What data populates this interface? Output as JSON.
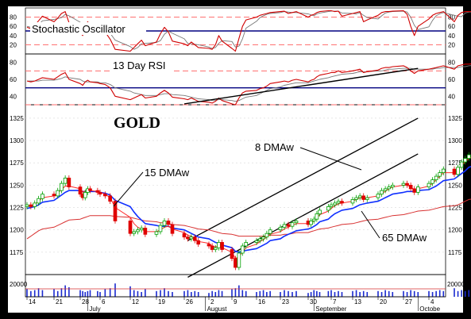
{
  "chart_data": {
    "type": "candlestick",
    "title": "GOLD",
    "panels": {
      "stochastic": {
        "label": "Stochastic Oscillator",
        "yticks": [
          20,
          40,
          60,
          80
        ],
        "ylim": [
          0,
          100
        ],
        "reference_lines": {
          "dashed": [
            20,
            80
          ],
          "solid": [
            50
          ]
        }
      },
      "rsi": {
        "label": "13 Day RSI",
        "yticks": [
          40,
          60,
          80
        ],
        "ylim": [
          30,
          90
        ],
        "reference_lines": {
          "dashed": [
            30,
            70
          ],
          "solid": [
            50
          ]
        }
      },
      "price": {
        "yticks": [
          1175,
          1200,
          1225,
          1250,
          1275,
          1300,
          1325
        ],
        "ylim": [
          1150,
          1340
        ],
        "annotations": [
          "8 DMAw",
          "15 DMAw",
          "65 DMAw"
        ]
      },
      "volume": {
        "ytick": "20000"
      }
    },
    "x_axis": {
      "tick_labels": [
        "14",
        "21",
        "28",
        "6",
        "12",
        "19",
        "26",
        "2",
        "9",
        "16",
        "23",
        "30",
        "7",
        "13",
        "20",
        "27",
        "4"
      ],
      "tick_dates": [
        "2010-06-14",
        "2010-06-21",
        "2010-06-28",
        "2010-07-06",
        "2010-07-12",
        "2010-07-19",
        "2010-07-26",
        "2010-08-02",
        "2010-08-09",
        "2010-08-16",
        "2010-08-23",
        "2010-08-30",
        "2010-09-07",
        "2010-09-13",
        "2010-09-20",
        "2010-09-27",
        "2010-10-04"
      ],
      "months": [
        "July",
        "August",
        "September",
        "Octobe"
      ]
    },
    "close": [
      1228,
      1226,
      1230,
      1235,
      1240,
      1238,
      1244,
      1252,
      1258,
      1248,
      1240,
      1236,
      1242,
      1246,
      1244,
      1242,
      1240,
      1238,
      1232,
      1210,
      1196,
      1198,
      1200,
      1202,
      1195,
      1198,
      1205,
      1210,
      1206,
      1196,
      1192,
      1190,
      1192,
      1188,
      1184,
      1182,
      1178,
      1180,
      1186,
      1178,
      1168,
      1158,
      1174,
      1182,
      1186,
      1188,
      1190,
      1192,
      1196,
      1200,
      1203,
      1206,
      1204,
      1208,
      1210,
      1206,
      1210,
      1212,
      1218,
      1222,
      1226,
      1228,
      1230,
      1232,
      1230,
      1234,
      1236,
      1238,
      1234,
      1236,
      1240,
      1244,
      1246,
      1248,
      1250,
      1252,
      1250,
      1246,
      1242,
      1248,
      1252,
      1256,
      1260,
      1264,
      1268,
      1262,
      1270,
      1276,
      1280,
      1284,
      1290,
      1296,
      1300,
      1302,
      1296,
      1304,
      1310,
      1316,
      1320
    ],
    "dmaw_8": [
      1226,
      1227,
      1229,
      1232,
      1236,
      1238,
      1241,
      1245,
      1249,
      1249,
      1246,
      1243,
      1243,
      1244,
      1244,
      1243,
      1242,
      1240,
      1236,
      1225,
      1214,
      1207,
      1203,
      1201,
      1198,
      1198,
      1200,
      1203,
      1204,
      1201,
      1197,
      1194,
      1193,
      1190,
      1187,
      1185,
      1182,
      1181,
      1182,
      1180,
      1175,
      1168,
      1170,
      1175,
      1180,
      1184,
      1187,
      1189,
      1192,
      1195,
      1198,
      1201,
      1203,
      1205,
      1207,
      1207,
      1208,
      1210,
      1213,
      1217,
      1221,
      1224,
      1227,
      1229,
      1230,
      1232,
      1234,
      1236,
      1235,
      1236,
      1238,
      1241,
      1243,
      1246,
      1248,
      1250,
      1250,
      1248,
      1245,
      1246,
      1249,
      1252,
      1256,
      1260,
      1264,
      1264,
      1267,
      1272,
      1276,
      1280,
      1285,
      1290,
      1295,
      1298,
      1297,
      1300,
      1305,
      1310,
      1315
    ],
    "dmaw_15": [
      1224,
      1225,
      1226,
      1228,
      1231,
      1233,
      1236,
      1239,
      1242,
      1244,
      1244,
      1243,
      1243,
      1243,
      1243,
      1243,
      1242,
      1241,
      1239,
      1233,
      1226,
      1220,
      1215,
      1211,
      1207,
      1205,
      1204,
      1204,
      1204,
      1202,
      1200,
      1198,
      1196,
      1194,
      1192,
      1190,
      1188,
      1186,
      1185,
      1183,
      1180,
      1176,
      1175,
      1176,
      1177,
      1179,
      1181,
      1183,
      1185,
      1188,
      1190,
      1193,
      1195,
      1197,
      1199,
      1201,
      1202,
      1204,
      1206,
      1209,
      1212,
      1215,
      1218,
      1220,
      1222,
      1224,
      1226,
      1228,
      1229,
      1230,
      1232,
      1234,
      1236,
      1238,
      1240,
      1242,
      1243,
      1243,
      1243,
      1244,
      1245,
      1247,
      1249,
      1252,
      1255,
      1257,
      1260,
      1263,
      1266,
      1270,
      1274,
      1278,
      1282,
      1286,
      1288,
      1290,
      1293,
      1297,
      1301
    ],
    "dmaw_65": [
      1190,
      1193,
      1196,
      1199,
      1201,
      1203,
      1205,
      1207,
      1209,
      1211,
      1212,
      1213,
      1214,
      1215,
      1216,
      1216,
      1216,
      1216,
      1216,
      1215,
      1214,
      1213,
      1212,
      1211,
      1210,
      1209,
      1208,
      1208,
      1207,
      1206,
      1205,
      1204,
      1203,
      1202,
      1201,
      1200,
      1199,
      1198,
      1197,
      1196,
      1195,
      1194,
      1193,
      1193,
      1193,
      1193,
      1193,
      1193,
      1193,
      1194,
      1194,
      1195,
      1195,
      1196,
      1197,
      1197,
      1198,
      1199,
      1200,
      1201,
      1202,
      1203,
      1204,
      1205,
      1206,
      1207,
      1208,
      1209,
      1210,
      1211,
      1212,
      1213,
      1214,
      1215,
      1216,
      1217,
      1218,
      1219,
      1220,
      1221,
      1222,
      1223,
      1224,
      1225,
      1226,
      1227,
      1228,
      1230,
      1232,
      1234,
      1236,
      1238,
      1240,
      1242,
      1243,
      1245,
      1247,
      1249,
      1251
    ],
    "rsi": [
      58,
      57,
      58,
      60,
      62,
      60,
      63,
      66,
      68,
      60,
      55,
      53,
      57,
      59,
      57,
      56,
      55,
      54,
      50,
      40,
      36,
      38,
      40,
      42,
      38,
      40,
      44,
      47,
      44,
      39,
      37,
      36,
      38,
      36,
      34,
      33,
      32,
      34,
      38,
      35,
      31,
      30,
      38,
      44,
      46,
      47,
      49,
      50,
      52,
      55,
      57,
      58,
      57,
      59,
      60,
      57,
      59,
      60,
      63,
      65,
      67,
      68,
      68,
      70,
      68,
      70,
      71,
      72,
      68,
      69,
      71,
      73,
      74,
      74,
      75,
      76,
      74,
      70,
      67,
      70,
      72,
      73,
      74,
      75,
      76,
      72,
      76,
      77,
      78,
      78,
      79,
      80,
      80,
      81,
      76,
      78,
      79,
      80,
      81
    ],
    "rsi_signal": [
      58,
      58,
      58,
      58,
      59,
      59,
      60,
      61,
      63,
      62,
      60,
      58,
      57,
      57,
      57,
      57,
      56,
      56,
      54,
      50,
      46,
      44,
      43,
      42,
      41,
      41,
      42,
      43,
      43,
      42,
      41,
      40,
      39,
      38,
      37,
      36,
      35,
      35,
      36,
      36,
      35,
      34,
      35,
      37,
      39,
      41,
      43,
      45,
      47,
      49,
      51,
      53,
      54,
      55,
      56,
      56,
      57,
      58,
      59,
      60,
      62,
      63,
      64,
      65,
      66,
      67,
      68,
      69,
      69,
      69,
      70,
      70,
      71,
      72,
      72,
      73,
      73,
      73,
      72,
      72,
      72,
      72,
      73,
      73,
      74,
      74,
      74,
      75,
      75,
      76,
      77,
      77,
      78,
      78,
      78,
      78,
      78,
      79,
      79
    ],
    "stoch_k": [
      58,
      55,
      62,
      72,
      82,
      70,
      78,
      88,
      92,
      68,
      46,
      40,
      60,
      70,
      62,
      56,
      52,
      48,
      32,
      10,
      6,
      14,
      22,
      30,
      18,
      26,
      44,
      58,
      48,
      28,
      22,
      18,
      26,
      20,
      14,
      12,
      10,
      20,
      40,
      28,
      12,
      6,
      34,
      60,
      74,
      80,
      84,
      86,
      88,
      90,
      92,
      93,
      88,
      90,
      92,
      80,
      84,
      86,
      90,
      92,
      94,
      94,
      92,
      93,
      82,
      88,
      90,
      92,
      70,
      74,
      84,
      90,
      92,
      92,
      93,
      94,
      86,
      60,
      40,
      60,
      76,
      84,
      88,
      90,
      92,
      70,
      84,
      90,
      92,
      92,
      93,
      94,
      93,
      94,
      78,
      86,
      88,
      88,
      86
    ],
    "stoch_d": [
      60,
      58,
      58,
      63,
      72,
      75,
      77,
      79,
      86,
      83,
      69,
      51,
      49,
      57,
      64,
      63,
      57,
      52,
      45,
      30,
      16,
      10,
      14,
      22,
      23,
      25,
      29,
      43,
      50,
      45,
      33,
      23,
      22,
      21,
      20,
      15,
      12,
      14,
      23,
      29,
      27,
      15,
      17,
      33,
      56,
      71,
      79,
      83,
      86,
      88,
      90,
      92,
      91,
      90,
      90,
      87,
      85,
      83,
      87,
      89,
      92,
      93,
      93,
      93,
      89,
      88,
      87,
      90,
      84,
      79,
      76,
      83,
      89,
      91,
      92,
      93,
      91,
      80,
      62,
      53,
      59,
      73,
      83,
      87,
      90,
      84,
      82,
      81,
      89,
      91,
      92,
      93,
      93,
      94,
      88,
      86,
      84,
      87,
      87
    ],
    "volume": [
      8000,
      6000,
      7000,
      9000,
      7000,
      8000,
      6000,
      9000,
      12000,
      10000,
      7000,
      6000,
      5000,
      6000,
      7000,
      6000,
      5000,
      8000,
      9000,
      14000,
      11000,
      7000,
      6000,
      5000,
      8000,
      6000,
      7000,
      9000,
      6000,
      5000,
      6000,
      7000,
      5000,
      6000,
      5000,
      4000,
      6000,
      5000,
      7000,
      6000,
      8000,
      9000,
      12000,
      7000,
      6000,
      5000,
      6000,
      7000,
      5000,
      6000,
      5000,
      7000,
      6000,
      5000,
      6000,
      4000,
      5000,
      7000,
      6000,
      5000,
      6000,
      7000,
      5000,
      6000,
      5000,
      6000,
      7000,
      5000,
      6000,
      5000,
      6000,
      5000,
      7000,
      6000,
      5000,
      6000,
      5000,
      7000,
      6000,
      5000,
      6000,
      5000,
      6000,
      7000,
      6000,
      9000,
      6000,
      7000,
      6000,
      7000,
      6000,
      8000,
      9000,
      6000,
      7000,
      6000,
      7000,
      6000,
      5000
    ],
    "channel": {
      "upper": [
        [
          "2010-07-27",
          1188
        ],
        [
          "2010-10-01",
          1325
        ]
      ],
      "lower": [
        [
          "2010-07-27",
          1147
        ],
        [
          "2010-10-01",
          1285
        ]
      ]
    },
    "rsi_trendline": [
      [
        "2010-07-26",
        31
      ],
      [
        "2010-10-01",
        73
      ]
    ],
    "colors": {
      "frame": "#000000",
      "background": "#ffffff",
      "dashed_reference": "#ff6b6b",
      "solid_reference": "#000080",
      "stoch_k": "#d00000",
      "stoch_d": "#777777",
      "rsi": "#d00000",
      "dmaw_8": "#ff2a2a",
      "dmaw_15": "#1030ff",
      "dmaw_65": "#d83030",
      "candle_up": "#00a000",
      "candle_down": "#e00000",
      "volume": "#1a2ad0",
      "channel": "#000000"
    }
  }
}
